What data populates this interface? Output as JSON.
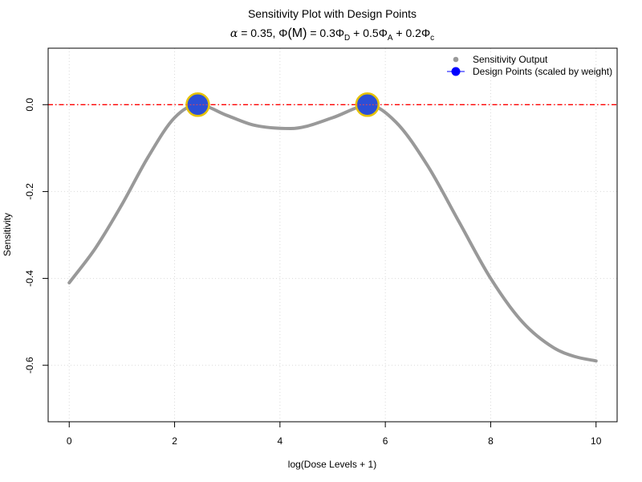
{
  "chart_data": {
    "type": "line",
    "title": "Sensitivity Plot with Design Points",
    "subtitle": {
      "alpha_symbol": "α",
      "alpha_text": " = 0.35, ",
      "phi_symbol": "Φ",
      "M_text": "(M)",
      "eq_text": " = 0.3",
      "sub_D": "D",
      "plus1": " + 0.5",
      "sub_A": "A",
      "plus2": " + 0.2",
      "sub_c": "c"
    },
    "xlabel": "log(Dose Levels + 1)",
    "ylabel": "Sensitivity",
    "xlim": [
      -0.4,
      10.4
    ],
    "ylim": [
      -0.73,
      0.13
    ],
    "xticks": [
      0,
      2,
      4,
      6,
      8,
      10
    ],
    "xtick_labels": [
      "0",
      "2",
      "4",
      "6",
      "8",
      "10"
    ],
    "yticks": [
      0.0,
      -0.2,
      -0.4,
      -0.6
    ],
    "ytick_labels": [
      "0.0",
      "-0.2",
      "-0.4",
      "-0.6"
    ],
    "grid": true,
    "legend_position": "top-right",
    "reference_line": {
      "y": 0,
      "style": "dash-dot",
      "color": "#ff0000"
    },
    "series": [
      {
        "name": "Sensitivity Output",
        "color": "#999999",
        "x": [
          0,
          0.5,
          1.0,
          1.5,
          2.0,
          2.44,
          3.0,
          3.5,
          4.2,
          5.0,
          5.5,
          5.66,
          6.2,
          6.8,
          7.4,
          8.0,
          8.6,
          9.2,
          9.6,
          10.0
        ],
        "y": [
          -0.41,
          -0.33,
          -0.23,
          -0.12,
          -0.03,
          0.0,
          -0.025,
          -0.047,
          -0.055,
          -0.03,
          -0.005,
          0.0,
          -0.04,
          -0.14,
          -0.27,
          -0.4,
          -0.5,
          -0.56,
          -0.58,
          -0.59
        ]
      },
      {
        "name": "Design Points (scaled by weight)",
        "color": "#2b4fd6",
        "edge_color": "#e6c200",
        "x": [
          2.44,
          5.66
        ],
        "y": [
          0.0,
          0.0
        ]
      }
    ]
  }
}
